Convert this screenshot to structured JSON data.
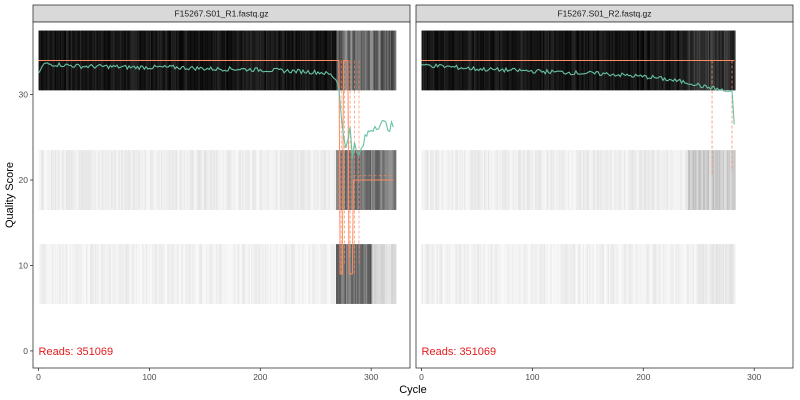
{
  "chart_data": {
    "type": "line",
    "xlabel": "Cycle",
    "ylabel": "Quality Score",
    "xlim": [
      -5,
      335
    ],
    "ylim": [
      -2,
      38.5
    ],
    "x_ticks": [
      0,
      100,
      200,
      300
    ],
    "y_ticks": [
      0,
      10,
      20,
      30
    ],
    "grid": false,
    "colors": {
      "mean_line": "#66c2a5",
      "quantile_lines": "#fc8d62",
      "reads_label": "#e41a1c",
      "strip_fill": "#d9d9d9"
    },
    "panels": [
      {
        "title": "F15267.S01_R1.fastq.gz",
        "reads_prefix": "Reads:",
        "reads": "351069",
        "cycles": 322,
        "mean_quality": [
          {
            "x": 0,
            "y": 32.5
          },
          {
            "x": 5,
            "y": 33.6
          },
          {
            "x": 20,
            "y": 33.5
          },
          {
            "x": 40,
            "y": 33.3
          },
          {
            "x": 60,
            "y": 33.3
          },
          {
            "x": 80,
            "y": 33.2
          },
          {
            "x": 100,
            "y": 33.2
          },
          {
            "x": 120,
            "y": 33.2
          },
          {
            "x": 140,
            "y": 33.1
          },
          {
            "x": 160,
            "y": 33.0
          },
          {
            "x": 180,
            "y": 33.0
          },
          {
            "x": 200,
            "y": 32.9
          },
          {
            "x": 220,
            "y": 32.8
          },
          {
            "x": 240,
            "y": 32.7
          },
          {
            "x": 255,
            "y": 32.6
          },
          {
            "x": 262,
            "y": 32.4
          },
          {
            "x": 268,
            "y": 32.0
          },
          {
            "x": 271,
            "y": 30.8
          },
          {
            "x": 273,
            "y": 28.0
          },
          {
            "x": 275,
            "y": 25.0
          },
          {
            "x": 277,
            "y": 23.5
          },
          {
            "x": 279,
            "y": 24.8
          },
          {
            "x": 281,
            "y": 26.5
          },
          {
            "x": 283,
            "y": 23.2
          },
          {
            "x": 285,
            "y": 24.0
          },
          {
            "x": 287,
            "y": 23.0
          },
          {
            "x": 289,
            "y": 22.8
          },
          {
            "x": 291,
            "y": 23.5
          },
          {
            "x": 293,
            "y": 24.2
          },
          {
            "x": 296,
            "y": 25.3
          },
          {
            "x": 300,
            "y": 26.0
          },
          {
            "x": 305,
            "y": 26.5
          },
          {
            "x": 310,
            "y": 26.6
          },
          {
            "x": 315,
            "y": 26.3
          },
          {
            "x": 320,
            "y": 26.2
          }
        ],
        "median_quality": [
          {
            "x": 0,
            "y": 34
          },
          {
            "x": 271,
            "y": 34
          },
          {
            "x": 272,
            "y": 9
          },
          {
            "x": 274,
            "y": 9
          },
          {
            "x": 275,
            "y": 34
          },
          {
            "x": 279,
            "y": 34
          },
          {
            "x": 280,
            "y": 9
          },
          {
            "x": 283,
            "y": 9
          },
          {
            "x": 284,
            "y": 20
          },
          {
            "x": 320,
            "y": 20
          }
        ]
      },
      {
        "title": "F15267.S01_R2.fastq.gz",
        "reads_prefix": "Reads:",
        "reads": "351069",
        "cycles": 282,
        "mean_quality": [
          {
            "x": 0,
            "y": 33.5
          },
          {
            "x": 10,
            "y": 33.4
          },
          {
            "x": 30,
            "y": 33.2
          },
          {
            "x": 50,
            "y": 33.0
          },
          {
            "x": 70,
            "y": 32.9
          },
          {
            "x": 90,
            "y": 32.8
          },
          {
            "x": 110,
            "y": 32.7
          },
          {
            "x": 130,
            "y": 32.6
          },
          {
            "x": 150,
            "y": 32.5
          },
          {
            "x": 170,
            "y": 32.4
          },
          {
            "x": 190,
            "y": 32.2
          },
          {
            "x": 210,
            "y": 32.0
          },
          {
            "x": 230,
            "y": 31.6
          },
          {
            "x": 245,
            "y": 31.3
          },
          {
            "x": 255,
            "y": 30.9
          },
          {
            "x": 262,
            "y": 30.8
          },
          {
            "x": 268,
            "y": 30.6
          },
          {
            "x": 274,
            "y": 30.4
          },
          {
            "x": 280,
            "y": 30.3
          },
          {
            "x": 282,
            "y": 26.5
          }
        ],
        "median_quality": [
          {
            "x": 0,
            "y": 34
          },
          {
            "x": 282,
            "y": 34
          }
        ]
      }
    ]
  }
}
